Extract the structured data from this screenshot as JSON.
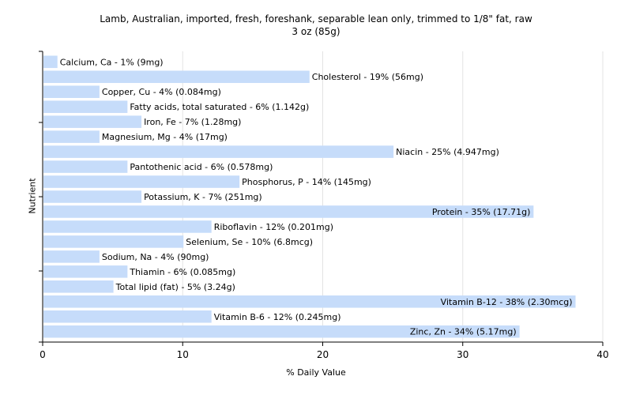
{
  "chart_data": {
    "type": "bar",
    "orientation": "horizontal",
    "title": "Lamb, Australian, imported, fresh, foreshank, separable lean only, trimmed to 1/8\" fat, raw",
    "subtitle": "3 oz (85g)",
    "xlabel": "% Daily Value",
    "ylabel": "Nutrient",
    "xlim": [
      0,
      40
    ],
    "xticks": [
      0,
      10,
      20,
      30,
      40
    ],
    "grid": true,
    "bar_color": "#c6dcfa",
    "categories": [
      "Calcium, Ca",
      "Cholesterol",
      "Copper, Cu",
      "Fatty acids, total saturated",
      "Iron, Fe",
      "Magnesium, Mg",
      "Niacin",
      "Pantothenic acid",
      "Phosphorus, P",
      "Potassium, K",
      "Protein",
      "Riboflavin",
      "Selenium, Se",
      "Sodium, Na",
      "Thiamin",
      "Total lipid (fat)",
      "Vitamin B-12",
      "Vitamin B-6",
      "Zinc, Zn"
    ],
    "values": [
      1,
      19,
      4,
      6,
      7,
      4,
      25,
      6,
      14,
      7,
      35,
      12,
      10,
      4,
      6,
      5,
      38,
      12,
      34
    ],
    "labels": [
      "Calcium, Ca - 1% (9mg)",
      "Cholesterol - 19% (56mg)",
      "Copper, Cu - 4% (0.084mg)",
      "Fatty acids, total saturated - 6% (1.142g)",
      "Iron, Fe - 7% (1.28mg)",
      "Magnesium, Mg - 4% (17mg)",
      "Niacin - 25% (4.947mg)",
      "Pantothenic acid - 6% (0.578mg)",
      "Phosphorus, P - 14% (145mg)",
      "Potassium, K - 7% (251mg)",
      "Protein - 35% (17.71g)",
      "Riboflavin - 12% (0.201mg)",
      "Selenium, Se - 10% (6.8mcg)",
      "Sodium, Na - 4% (90mg)",
      "Thiamin - 6% (0.085mg)",
      "Total lipid (fat) - 5% (3.24g)",
      "Vitamin B-12 - 38% (2.30mcg)",
      "Vitamin B-6 - 12% (0.245mg)",
      "Zinc, Zn - 34% (5.17mg)"
    ]
  }
}
